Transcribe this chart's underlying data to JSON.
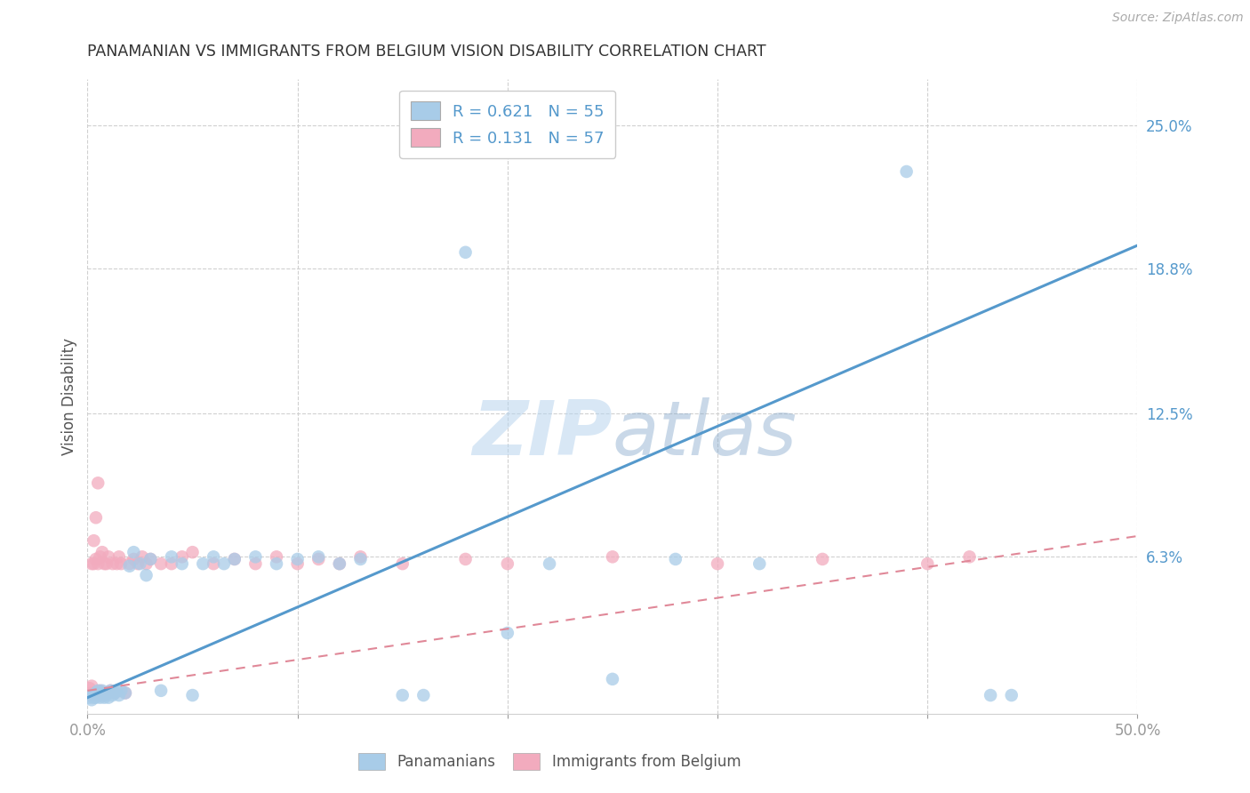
{
  "title": "PANAMANIAN VS IMMIGRANTS FROM BELGIUM VISION DISABILITY CORRELATION CHART",
  "source": "Source: ZipAtlas.com",
  "ylabel": "Vision Disability",
  "xlim": [
    0.0,
    0.5
  ],
  "ylim": [
    -0.005,
    0.27
  ],
  "ytick_positions_right": [
    0.25,
    0.188,
    0.125,
    0.063
  ],
  "ytick_labels_right": [
    "25.0%",
    "18.8%",
    "12.5%",
    "6.3%"
  ],
  "watermark_text": "ZIPatlas",
  "legend1_label": "R = 0.621   N = 55",
  "legend2_label": "R = 0.131   N = 57",
  "series1_color": "#a8cce8",
  "series2_color": "#f2abbe",
  "line1_color": "#5599cc",
  "line2_color": "#e08898",
  "grid_color": "#d0d0d0",
  "background_color": "#ffffff",
  "right_axis_color": "#5599cc",
  "title_color": "#333333",
  "line1_start_x": 0.0,
  "line1_start_y": 0.002,
  "line1_end_x": 0.5,
  "line1_end_y": 0.198,
  "line2_start_x": 0.0,
  "line2_start_y": 0.005,
  "line2_end_x": 0.5,
  "line2_end_y": 0.072,
  "pan_x": [
    0.001,
    0.002,
    0.002,
    0.003,
    0.003,
    0.004,
    0.004,
    0.005,
    0.005,
    0.006,
    0.006,
    0.007,
    0.007,
    0.008,
    0.008,
    0.009,
    0.01,
    0.01,
    0.011,
    0.012,
    0.013,
    0.014,
    0.015,
    0.016,
    0.018,
    0.02,
    0.022,
    0.025,
    0.028,
    0.03,
    0.035,
    0.04,
    0.045,
    0.05,
    0.055,
    0.06,
    0.065,
    0.07,
    0.08,
    0.09,
    0.1,
    0.11,
    0.12,
    0.13,
    0.15,
    0.16,
    0.18,
    0.2,
    0.22,
    0.25,
    0.28,
    0.32,
    0.39,
    0.43,
    0.44
  ],
  "pan_y": [
    0.002,
    0.003,
    0.001,
    0.003,
    0.002,
    0.004,
    0.002,
    0.003,
    0.005,
    0.002,
    0.004,
    0.003,
    0.005,
    0.002,
    0.004,
    0.003,
    0.004,
    0.002,
    0.005,
    0.003,
    0.004,
    0.005,
    0.003,
    0.005,
    0.004,
    0.059,
    0.065,
    0.06,
    0.055,
    0.062,
    0.005,
    0.063,
    0.06,
    0.003,
    0.06,
    0.063,
    0.06,
    0.062,
    0.063,
    0.06,
    0.062,
    0.063,
    0.06,
    0.062,
    0.003,
    0.003,
    0.195,
    0.03,
    0.06,
    0.01,
    0.062,
    0.06,
    0.23,
    0.003,
    0.003
  ],
  "bel_x": [
    0.001,
    0.001,
    0.002,
    0.002,
    0.002,
    0.003,
    0.003,
    0.003,
    0.004,
    0.004,
    0.004,
    0.005,
    0.005,
    0.005,
    0.006,
    0.006,
    0.007,
    0.007,
    0.008,
    0.008,
    0.009,
    0.009,
    0.01,
    0.01,
    0.011,
    0.012,
    0.013,
    0.014,
    0.015,
    0.016,
    0.018,
    0.02,
    0.022,
    0.024,
    0.026,
    0.028,
    0.03,
    0.035,
    0.04,
    0.045,
    0.05,
    0.06,
    0.07,
    0.08,
    0.09,
    0.1,
    0.11,
    0.12,
    0.13,
    0.15,
    0.18,
    0.2,
    0.25,
    0.3,
    0.35,
    0.4,
    0.42
  ],
  "bel_y": [
    0.003,
    0.006,
    0.004,
    0.007,
    0.06,
    0.003,
    0.06,
    0.07,
    0.003,
    0.062,
    0.08,
    0.003,
    0.06,
    0.095,
    0.005,
    0.063,
    0.003,
    0.065,
    0.003,
    0.06,
    0.004,
    0.06,
    0.004,
    0.063,
    0.005,
    0.06,
    0.004,
    0.06,
    0.063,
    0.06,
    0.004,
    0.06,
    0.062,
    0.06,
    0.063,
    0.06,
    0.062,
    0.06,
    0.06,
    0.063,
    0.065,
    0.06,
    0.062,
    0.06,
    0.063,
    0.06,
    0.062,
    0.06,
    0.063,
    0.06,
    0.062,
    0.06,
    0.063,
    0.06,
    0.062,
    0.06,
    0.063
  ]
}
